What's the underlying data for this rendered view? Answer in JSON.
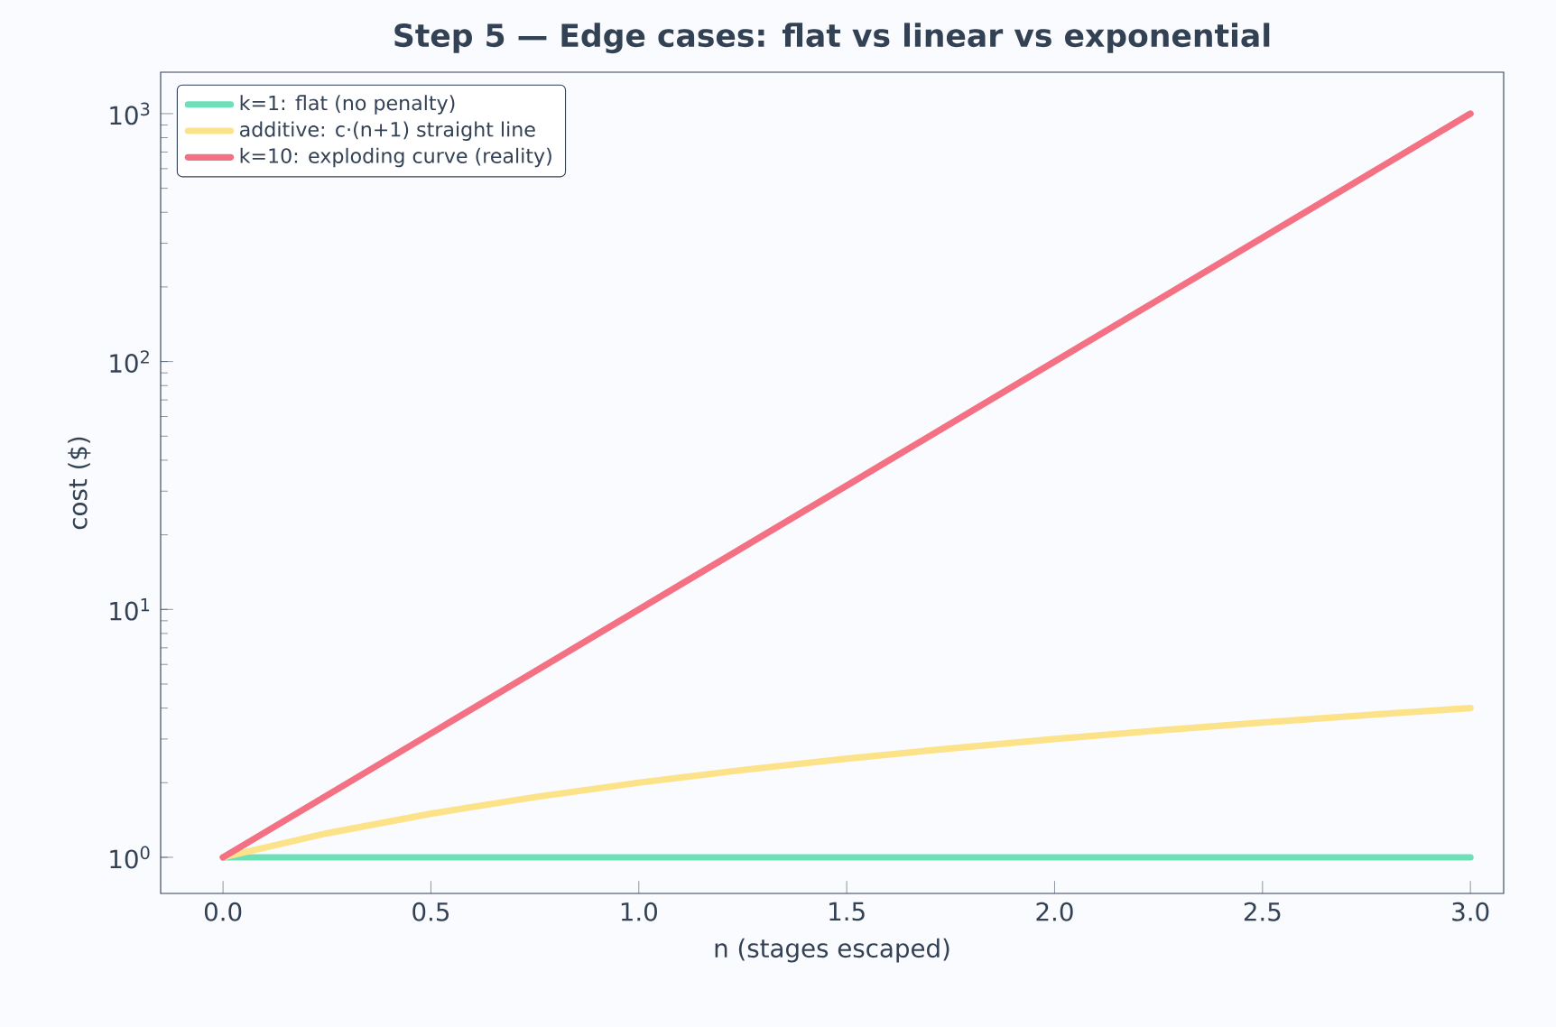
{
  "chart_data": {
    "type": "line",
    "title": "Step 5 — Edge cases: flat vs linear vs exponential",
    "xlabel": "n  (stages escaped)",
    "ylabel": "cost  ($)",
    "log": "y",
    "legend": "top left",
    "line_style": "solid",
    "xlim": [
      -0.15,
      3.08
    ],
    "xticks": [
      {
        "value": 0,
        "label": "0.0"
      },
      {
        "value": 0.5,
        "label": "0.5"
      },
      {
        "value": 1,
        "label": "1.0"
      },
      {
        "value": 1.5,
        "label": "1.5"
      },
      {
        "value": 2,
        "label": "2.0"
      },
      {
        "value": 2.5,
        "label": "2.5"
      },
      {
        "value": 3,
        "label": "3.0"
      }
    ],
    "ylim": [
      0.715,
      1470
    ],
    "yticks": [
      {
        "value": 1,
        "label": "10$^{0}$"
      },
      {
        "value": 10,
        "label": "10$^{1}$"
      },
      {
        "value": 100,
        "label": "10$^{2}$"
      },
      {
        "value": 1000,
        "label": "10$^{3}$"
      }
    ],
    "series": [
      {
        "name": "k=1: flat (no penalty)",
        "color": "#6ee0b8",
        "x": [
          0,
          0.5,
          1,
          1.5,
          2,
          2.5,
          3
        ],
        "values": [
          1,
          1,
          1,
          1,
          1,
          1,
          1
        ]
      },
      {
        "name": "additive: c·(n+1) straight line",
        "color": "#fce38a",
        "x": [
          0,
          0.25,
          0.5,
          0.75,
          1,
          1.25,
          1.5,
          1.75,
          2,
          2.25,
          2.5,
          2.75,
          3
        ],
        "values": [
          1,
          1.25,
          1.5,
          1.75,
          2,
          2.25,
          2.5,
          2.75,
          3,
          3.25,
          3.5,
          3.75,
          4
        ]
      },
      {
        "name": "k=10: exploding curve (reality)",
        "color": "#f47184",
        "x": [
          0,
          0.5,
          1,
          1.5,
          2,
          2.5,
          3
        ],
        "values": [
          1,
          3.16,
          10,
          31.6,
          100,
          316,
          1000
        ]
      }
    ]
  }
}
